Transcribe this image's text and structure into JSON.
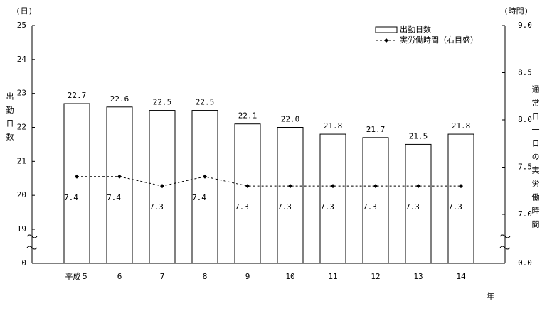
{
  "chart_data": {
    "type": "bar-line",
    "y_unit_label": "(日)",
    "y2_unit_label": "(時間)",
    "ylabel": "出勤日数",
    "y2label": "通常日一日の実労働時間",
    "xlabel": "年",
    "categories": [
      "平成５",
      "6",
      "7",
      "8",
      "9",
      "10",
      "11",
      "12",
      "13",
      "14"
    ],
    "series": [
      {
        "name": "出勤日数",
        "type": "bar",
        "color": "#ffffff",
        "values": [
          22.7,
          22.6,
          22.5,
          22.5,
          22.1,
          22.0,
          21.8,
          21.7,
          21.5,
          21.8
        ],
        "value_labels": [
          "22.7",
          "22.6",
          "22.5",
          "22.5",
          "22.1",
          "22.0",
          "21.8",
          "21.7",
          "21.5",
          "21.8"
        ]
      },
      {
        "name": "実労働時間（右目盛）",
        "type": "line",
        "axis": "y2",
        "color": "#000000",
        "values": [
          7.4,
          7.4,
          7.3,
          7.4,
          7.3,
          7.3,
          7.3,
          7.3,
          7.3,
          7.3
        ]
      }
    ],
    "ylim": [
      19,
      25
    ],
    "yticks": [
      0,
      19,
      20,
      21,
      22,
      23,
      24,
      25
    ],
    "y2lim": [
      7.0,
      9.0
    ],
    "y2ticks": [
      {
        "value": 0,
        "label": "0.0"
      },
      {
        "value": 7,
        "label": "7.0"
      },
      {
        "value": 7.5,
        "label": "7.5"
      },
      {
        "value": 8,
        "label": "8.0"
      },
      {
        "value": 8.5,
        "label": "8.5"
      },
      {
        "value": 9,
        "label": "9.0"
      }
    ],
    "axis_break": true,
    "legend": "upper right"
  }
}
